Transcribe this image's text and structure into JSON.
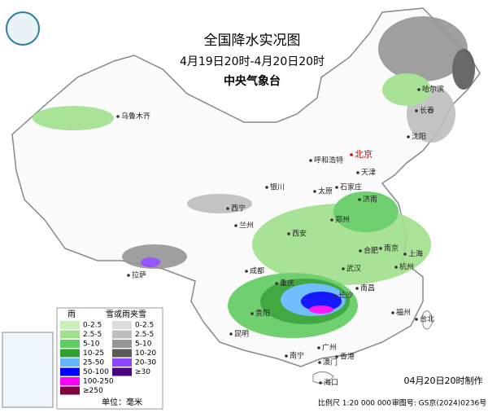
{
  "header": {
    "title": "全国降水实况图",
    "period": "4月19日20时-4月20日20时",
    "agency": "中央气象台"
  },
  "legend": {
    "rain_title": "雨",
    "snow_title": "雪或雨夹雪",
    "unit": "单位：毫米",
    "rain": [
      {
        "label": "0-2.5",
        "color": "#c8f0b8"
      },
      {
        "label": "2.5-5",
        "color": "#a0e08c"
      },
      {
        "label": "5-10",
        "color": "#5fcc5f"
      },
      {
        "label": "10-25",
        "color": "#2fa02f"
      },
      {
        "label": "25-50",
        "color": "#61b8ff"
      },
      {
        "label": "50-100",
        "color": "#0000ff"
      },
      {
        "label": "100-250",
        "color": "#fa00fa"
      },
      {
        "label": "≥250",
        "color": "#800040"
      }
    ],
    "snow": [
      {
        "label": "0-2.5",
        "color": "#dcdcdc"
      },
      {
        "label": "2.5-5",
        "color": "#bebebe"
      },
      {
        "label": "5-10",
        "color": "#969696"
      },
      {
        "label": "10-20",
        "color": "#5a5a5a"
      },
      {
        "label": "20-30",
        "color": "#8c46ff"
      },
      {
        "label": "≥30",
        "color": "#4b0082"
      }
    ]
  },
  "cities": [
    "乌鲁木齐",
    "呼和浩特",
    "北京",
    "天津",
    "哈尔滨",
    "长春",
    "沈阳",
    "银川",
    "太原",
    "石家庄",
    "济南",
    "西宁",
    "兰州",
    "西安",
    "郑州",
    "合肥",
    "南京",
    "上海",
    "杭州",
    "拉萨",
    "成都",
    "重庆",
    "武汉",
    "长沙",
    "南昌",
    "福州",
    "台北",
    "贵阳",
    "昆明",
    "南宁",
    "广州",
    "澳门",
    "香港",
    "海口"
  ],
  "footer": {
    "made": "04月20日20时制作",
    "scale": "比例尺 1:20 000 000",
    "review": "审图号: GS京(2024)0236号"
  }
}
